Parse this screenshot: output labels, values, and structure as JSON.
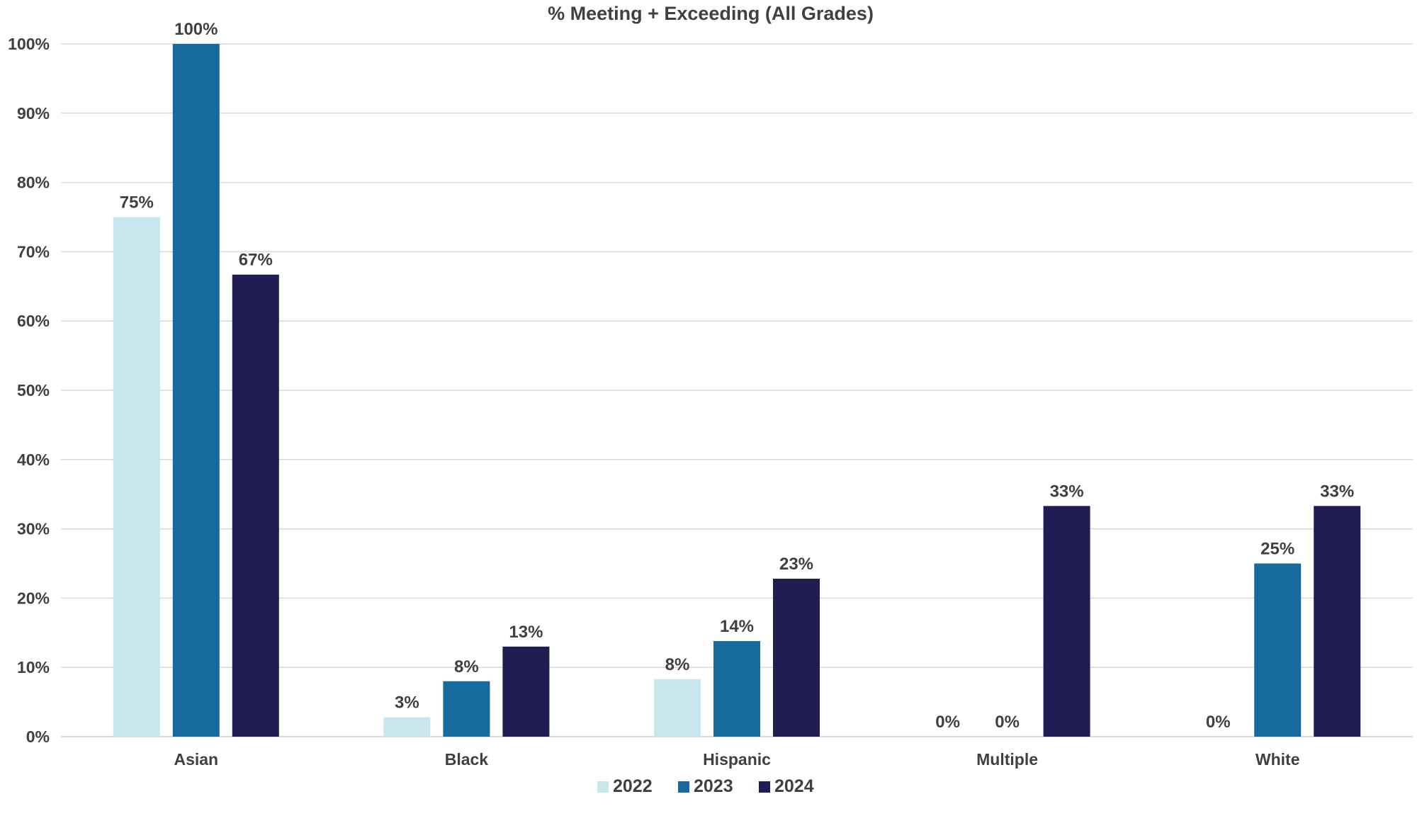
{
  "chart_data": {
    "type": "bar",
    "title": "% Meeting + Exceeding (All Grades)",
    "xlabel": "",
    "ylabel": "",
    "categories": [
      "Asian",
      "Black",
      "Hispanic",
      "Multiple",
      "White"
    ],
    "series": [
      {
        "name": "2022",
        "color": "#c9e6ee",
        "values": [
          0.75,
          0.028,
          0.083,
          0.0,
          0.0
        ],
        "labels": [
          "75%",
          "3%",
          "8%",
          "0%",
          "0%"
        ]
      },
      {
        "name": "2023",
        "color": "#166a9e",
        "values": [
          1.0,
          0.08,
          0.138,
          0.0,
          0.25
        ],
        "labels": [
          "100%",
          "8%",
          "14%",
          "0%",
          "25%"
        ]
      },
      {
        "name": "2024",
        "color": "#1f1d51",
        "values": [
          0.667,
          0.13,
          0.228,
          0.333,
          0.333
        ],
        "labels": [
          "67%",
          "13%",
          "23%",
          "33%",
          "33%"
        ]
      }
    ],
    "ylim": [
      0,
      1
    ],
    "yticks": [
      0,
      0.1,
      0.2,
      0.3,
      0.4,
      0.5,
      0.6,
      0.7,
      0.8,
      0.9,
      1.0
    ],
    "ytick_labels": [
      "0%",
      "10%",
      "20%",
      "30%",
      "40%",
      "50%",
      "60%",
      "70%",
      "80%",
      "90%",
      "100%"
    ],
    "grid": true,
    "legend_position": "bottom"
  }
}
